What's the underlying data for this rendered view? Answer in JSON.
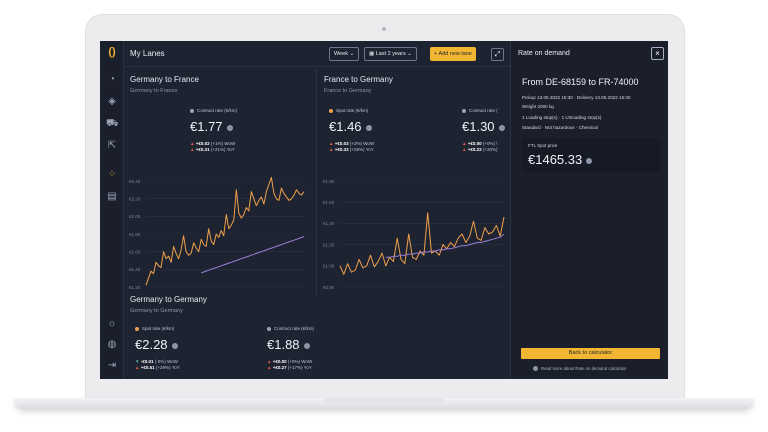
{
  "colors": {
    "accent": "#f2b632",
    "spot_line": "#f0a04b",
    "contract_line": "#9b7fd8",
    "background": "#1d2330",
    "down_marker": "#4fb3a0",
    "up_marker": "#e85a4f"
  },
  "header": {
    "title": "My Lanes",
    "period_select": "Week",
    "range_select": "Last 2 years",
    "add_lane_label": "Add new lane"
  },
  "lanes": [
    {
      "title": "Germany to France",
      "subtitle": "Germany to France",
      "metrics": [
        {
          "label": "Contract rate (€/km)",
          "value": "€1.77",
          "wow": "+€0.02",
          "wow_pct": "(+1%) WoW",
          "yoy": "+€0.31",
          "yoy_pct": "(+21%) YoY"
        }
      ],
      "y_ticks": [
        "€2.40",
        "€2.20",
        "€2.00",
        "€1.80",
        "€1.60",
        "€1.40",
        "€1.20"
      ]
    },
    {
      "title": "France to Germany",
      "subtitle": "France to Germany",
      "metrics": [
        {
          "label": "Spot rate (€/km)",
          "value": "€1.46",
          "wow": "+€0.03",
          "wow_pct": "(+2%) WoW",
          "yoy": "+€0.33",
          "yoy_pct": "(+29%) YoY"
        },
        {
          "label": "Contract rate (",
          "value": "€1.30",
          "wow": "+€0.00",
          "wow_pct": "(+0%) \\",
          "yoy": "+€0.22",
          "yoy_pct": "(+20%)"
        }
      ],
      "y_ticks": [
        "€1.80",
        "€1.60",
        "€1.40",
        "€1.20",
        "€1.00",
        "€0.80"
      ]
    },
    {
      "title": "Germany to Germany",
      "subtitle": "Germany to Germany",
      "metrics": [
        {
          "label": "Spot rate (€/km)",
          "value": "€2.28",
          "wow": "-€0.01",
          "wow_pct": "(-0%) WoW",
          "yoy": "+€0.51",
          "yoy_pct": "(+29%) YoY"
        },
        {
          "label": "Contract rate (€/km)",
          "value": "€1.88",
          "wow": "+€0.00",
          "wow_pct": "(+0%) WoW",
          "yoy": "+€0.27",
          "yoy_pct": "(+17%) YoY"
        }
      ]
    }
  ],
  "rate_panel": {
    "title": "Rate on demand",
    "route": "From DE-68159 to FR-74000",
    "pickup": "Pickup 13.06.2022 15:30 · Delivery 13.06.2022 15:30",
    "weight": "Weight 2000 kg",
    "stops": "1 Loading stop(s) · 1 Unloading stop(s)",
    "attributes": "Standard · Not hazardous · Chemical",
    "ftl_label": "FTL Spot price",
    "ftl_value": "€1465.33",
    "back_label": "Back to calculator",
    "read_more": "Read more about Rate on demand calculator"
  },
  "chart_data": [
    {
      "type": "line",
      "title": "Germany to France",
      "y_ticks": [
        "€2.40",
        "€2.20",
        "€2.00",
        "€1.80",
        "€1.60",
        "€1.40",
        "€1.20"
      ],
      "ylim": [
        1.2,
        2.4
      ],
      "series": [
        {
          "name": "Spot rate",
          "values": [
            1.22,
            1.3,
            1.38,
            1.35,
            1.48,
            1.44,
            1.42,
            1.6,
            1.52,
            1.55,
            1.48,
            1.66,
            1.58,
            1.52,
            1.62,
            1.78,
            1.6,
            1.56,
            1.58,
            1.7,
            1.64,
            1.6,
            1.74,
            1.68,
            1.66,
            1.86,
            1.72,
            1.68,
            1.8,
            1.76,
            1.84,
            1.78,
            2.02,
            1.86,
            1.9,
            1.96,
            2.3,
            2.04,
            1.98,
            2.02,
            2.1,
            2.06,
            2.28,
            2.2,
            2.12,
            2.18,
            2.22,
            2.14,
            2.28,
            2.36,
            2.44,
            2.26,
            2.2,
            2.18,
            2.32,
            2.26,
            2.22,
            2.18,
            2.2,
            2.24,
            2.3,
            2.26,
            2.24,
            2.28
          ]
        },
        {
          "name": "Contract rate",
          "values": [
            1.36,
            1.37,
            1.38,
            1.39,
            1.4,
            1.41,
            1.42,
            1.43,
            1.44,
            1.45,
            1.46,
            1.47,
            1.48,
            1.49,
            1.5,
            1.51,
            1.52,
            1.53,
            1.54,
            1.55,
            1.56,
            1.57,
            1.58,
            1.59,
            1.6,
            1.61,
            1.62,
            1.63,
            1.64,
            1.65,
            1.66,
            1.67,
            1.68,
            1.69,
            1.7,
            1.71,
            1.72,
            1.73,
            1.74,
            1.75,
            1.76,
            1.77
          ]
        }
      ]
    },
    {
      "type": "line",
      "title": "France to Germany",
      "y_ticks": [
        "€1.80",
        "€1.60",
        "€1.40",
        "€1.20",
        "€1.00",
        "€0.80"
      ],
      "ylim": [
        0.8,
        1.8
      ],
      "series": [
        {
          "name": "Spot rate",
          "values": [
            1.0,
            0.92,
            1.02,
            0.94,
            0.96,
            1.06,
            0.98,
            1.0,
            1.1,
            0.99,
            1.04,
            1.12,
            1.0,
            1.08,
            1.04,
            1.26,
            1.06,
            1.02,
            1.3,
            1.08,
            1.06,
            1.14,
            1.1,
            1.5,
            1.12,
            1.14,
            1.1,
            1.2,
            1.16,
            1.22,
            1.18,
            1.26,
            1.3,
            1.22,
            1.28,
            1.42,
            1.26,
            1.24,
            1.36,
            1.3,
            1.32,
            1.38,
            1.28,
            1.46
          ]
        },
        {
          "name": "Contract rate",
          "values": [
            1.08,
            1.08,
            1.09,
            1.09,
            1.1,
            1.1,
            1.11,
            1.11,
            1.12,
            1.12,
            1.13,
            1.13,
            1.14,
            1.14,
            1.15,
            1.15,
            1.16,
            1.16,
            1.17,
            1.18,
            1.19,
            1.19,
            1.2,
            1.21,
            1.22,
            1.22,
            1.23,
            1.24,
            1.25,
            1.26,
            1.27,
            1.3
          ]
        }
      ]
    }
  ]
}
